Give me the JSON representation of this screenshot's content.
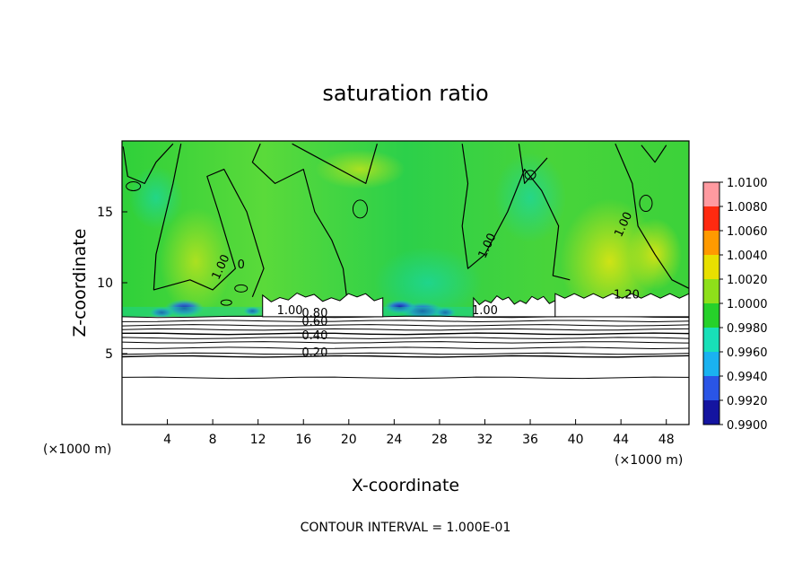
{
  "chart_data": {
    "type": "heatmap",
    "title": "saturation ratio",
    "xlabel": "X-coordinate",
    "ylabel": "Z-coordinate",
    "x_unit_left": "(×1000 m)",
    "x_unit_right": "(×1000 m)",
    "footer": "CONTOUR INTERVAL = 1.000E-01",
    "xlim": [
      0,
      50
    ],
    "ylim": [
      0,
      20
    ],
    "x_ticks": [
      4,
      8,
      12,
      16,
      20,
      24,
      28,
      32,
      36,
      40,
      44,
      48
    ],
    "x_tick_labels": [
      "4",
      "8",
      "12",
      "16",
      "20",
      "24",
      "28",
      "32",
      "36",
      "40",
      "44",
      "48"
    ],
    "y_ticks": [
      5,
      10,
      15
    ],
    "y_tick_labels": [
      "5",
      "10",
      "15"
    ],
    "colorbar": {
      "levels": [
        0.99,
        0.992,
        0.994,
        0.996,
        0.998,
        1.0,
        1.002,
        1.004,
        1.006,
        1.008,
        1.01
      ],
      "labels": [
        "0.9900",
        "0.9920",
        "0.9940",
        "0.9960",
        "0.9980",
        "1.0000",
        "1.0020",
        "1.0040",
        "1.0060",
        "1.0080",
        "1.0100"
      ],
      "colors": [
        "#7a1fa2",
        "#1414a0",
        "#2a55e6",
        "#1ab2f0",
        "#18e0b8",
        "#26d12a",
        "#8ee01a",
        "#e8e000",
        "#ff9a00",
        "#ff2a10",
        "#ff9aa0"
      ]
    },
    "contour_labels": [
      {
        "text": "1.00",
        "x": 9.0,
        "z": 11.0
      },
      {
        "text": "0",
        "x": 10.5,
        "z": 11.0
      },
      {
        "text": "1.00",
        "x": 32.5,
        "z": 12.5
      },
      {
        "text": "1.00",
        "x": 44.5,
        "z": 14.0
      },
      {
        "text": "1.20",
        "x": 44.5,
        "z": 8.9
      },
      {
        "text": "1.00",
        "x": 14.8,
        "z": 7.8
      },
      {
        "text": "0.80",
        "x": 17.0,
        "z": 7.6
      },
      {
        "text": "0.60",
        "x": 17.0,
        "z": 7.0
      },
      {
        "text": "0.40",
        "x": 17.0,
        "z": 6.0
      },
      {
        "text": "0.20",
        "x": 17.0,
        "z": 4.8
      },
      {
        "text": "1.00",
        "x": 32.0,
        "z": 7.8
      }
    ],
    "stable_layer_contours_z": [
      7.6,
      7.3,
      7.0,
      6.7,
      6.4,
      6.1,
      5.8,
      5.4,
      5.0,
      4.8,
      3.3
    ],
    "cloud_regions": [
      {
        "x": [
          12.4,
          23.0
        ],
        "z": [
          7.6,
          9.0
        ]
      },
      {
        "x": [
          31.0,
          38.2
        ],
        "z": [
          7.6,
          8.8
        ]
      },
      {
        "x": [
          38.2,
          50.0
        ],
        "z": [
          7.6,
          9.1
        ]
      }
    ]
  }
}
